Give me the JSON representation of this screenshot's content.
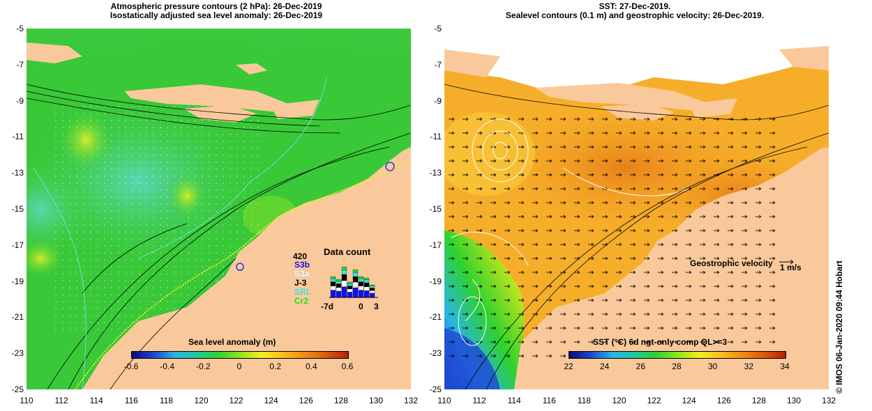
{
  "left_panel": {
    "title_line1": "Atmospheric pressure contours (2 hPa): 26-Dec-2019",
    "title_line2": "Isostatically adjusted sea level anomaly: 26-Dec-2019",
    "colorbar_title": "Sea level anomaly (m)",
    "colorbar_ticks": [
      "-0.6",
      "-0.4",
      "-0.2",
      "0",
      "0.2",
      "0.4",
      "0.6"
    ],
    "colorbar_range": [
      -0.6,
      0.6
    ],
    "data_count": {
      "title": "Data count",
      "max_label": "420",
      "missions": [
        {
          "name": "S3b",
          "color": "#1010ee"
        },
        {
          "name": "S3a",
          "color": "#ffffff"
        },
        {
          "name": "J-3",
          "color": "#000000"
        },
        {
          "name": "SRL",
          "color": "#40e0e0"
        },
        {
          "name": "Cr2",
          "color": "#20e020"
        }
      ],
      "x_labels": [
        "-7d",
        "0",
        "3"
      ]
    }
  },
  "right_panel": {
    "title_line1": "SST: 27-Dec-2019.",
    "title_line2": "Sealevel contours (0.1 m) and geostrophic velocity: 26-Dec-2019.",
    "colorbar_title": "SST (°C) 6d ngt-only comp QL>=3",
    "colorbar_ticks": [
      "22",
      "24",
      "26",
      "28",
      "30",
      "32",
      "34"
    ],
    "colorbar_range": [
      22,
      34
    ],
    "velocity_label": "Geostrophic velocity",
    "velocity_scale": "1 m/s"
  },
  "axes": {
    "lat_labels": [
      "-5",
      "-7",
      "-9",
      "-11",
      "-13",
      "-15",
      "-17",
      "-19",
      "-21",
      "-23",
      "-25"
    ],
    "lon_labels": [
      "110",
      "112",
      "114",
      "116",
      "118",
      "120",
      "122",
      "124",
      "126",
      "128",
      "130",
      "132"
    ]
  },
  "credit": "© IMOS 06-Jan-2020 09:44 Hobart",
  "colors": {
    "land": "#f9c99b",
    "sla_scale": [
      "#0a0a78",
      "#1e46d2",
      "#2ab4e6",
      "#20c8a0",
      "#2ed22e",
      "#8ce61e",
      "#f0f01e",
      "#fabe1e",
      "#f08c14",
      "#dc5a0a",
      "#b41e0a"
    ],
    "sst_scale": [
      "#0a0a78",
      "#1e46d2",
      "#2ab4e6",
      "#20c8a0",
      "#2ed22e",
      "#8ce61e",
      "#f0f01e",
      "#fabe1e",
      "#f08c14",
      "#dc5a0a",
      "#b41e0a"
    ]
  }
}
